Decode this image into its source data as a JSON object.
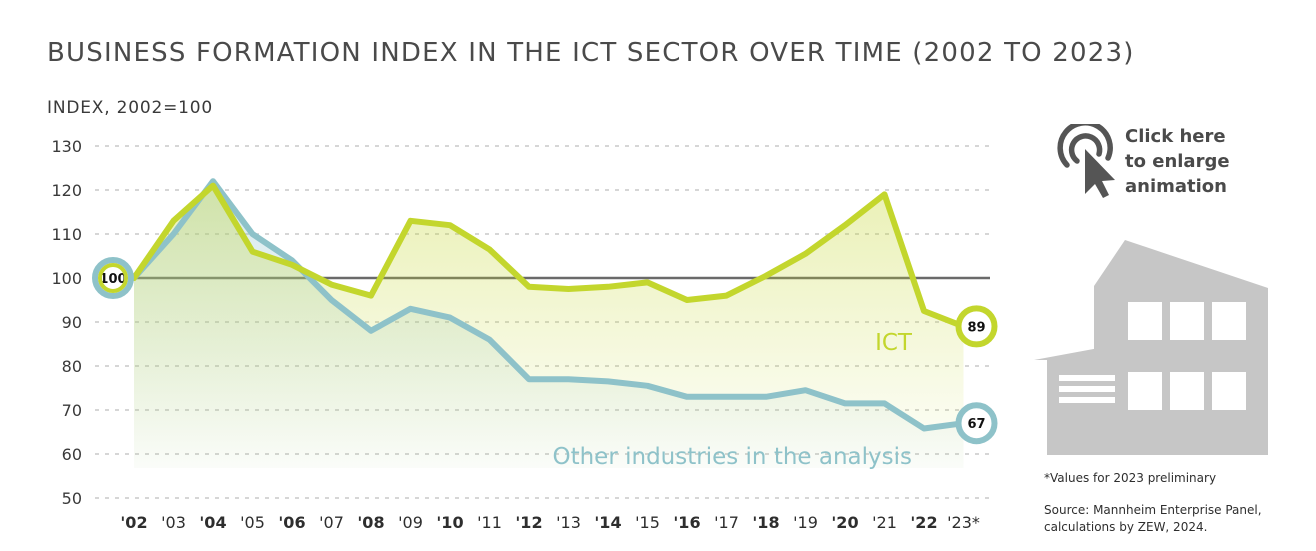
{
  "title": "BUSINESS FORMATION INDEX IN THE ICT SECTOR OVER TIME (2002 TO 2023)",
  "cta": {
    "line1": "Click here",
    "line2": "to enlarge",
    "line3": "animation",
    "icon": "click-cursor-icon"
  },
  "footnote": "*Values for 2023 preliminary",
  "source": {
    "line1": "Source: Mannheim Enterprise Panel,",
    "line2": "calculations by ZEW, 2024."
  },
  "colors": {
    "ict": "#c3d62d",
    "other": "#8ec2c9",
    "baseline": "#6a6a6a",
    "grid": "#c8c8c8",
    "building": "#c6c6c6"
  },
  "chart_data": {
    "type": "line",
    "ylabel": "INDEX, 2002=100",
    "ylim": [
      50,
      130
    ],
    "yticks": [
      50,
      60,
      70,
      80,
      90,
      100,
      110,
      120,
      130
    ],
    "categories": [
      "'02",
      "'03",
      "'04",
      "'05",
      "'06",
      "'07",
      "'08",
      "'09",
      "'10",
      "'11",
      "'12",
      "'13",
      "'14",
      "'15",
      "'16",
      "'17",
      "'18",
      "'19",
      "'20",
      "'21",
      "'22",
      "'23*"
    ],
    "reference_line": 100,
    "series": [
      {
        "name": "ICT",
        "color": "#c3d62d",
        "values": [
          100,
          113,
          121,
          106,
          103,
          98.5,
          96,
          113,
          112,
          106.5,
          98,
          97.5,
          98,
          99,
          95,
          96,
          100.5,
          105.5,
          112,
          119,
          92.5,
          89
        ],
        "end_label": "89"
      },
      {
        "name": "Other industries in the analysis",
        "color": "#8ec2c9",
        "values": [
          100,
          110,
          122,
          110,
          104,
          95,
          88,
          93,
          91,
          86,
          77,
          77,
          76.5,
          75.5,
          73,
          73,
          73,
          74.5,
          71.5,
          71.5,
          65.8,
          67
        ],
        "end_label": "67"
      }
    ],
    "start_label": "100",
    "grid": true
  }
}
